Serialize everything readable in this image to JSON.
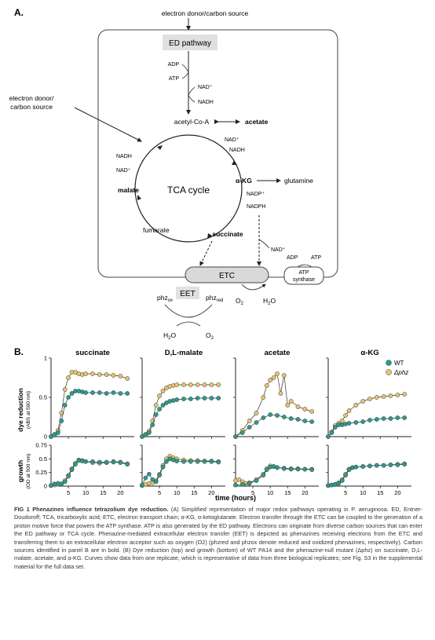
{
  "panel_a": {
    "label": "A.",
    "top_source": "electron donor/carbon source",
    "left_source_line1": "electron donor/",
    "left_source_line2": "carbon source",
    "ed_pathway": "ED pathway",
    "adp": "ADP",
    "atp": "ATP",
    "nad_plus": "NAD⁺",
    "nadh": "NADH",
    "acetyl_coa": "acetyl-Co-A",
    "acetate": "acetate",
    "nadh_left": "NADH",
    "nad_left": "NAD⁺",
    "malate": "malate",
    "tca_cycle": "TCA cycle",
    "akg": "α-KG",
    "glutamine": "glutamine",
    "nadp_plus": "NADP⁺",
    "nadph": "NADPH",
    "fumarate": "fumarate",
    "succinate": "succinate",
    "nad_plus_lower": "NAD⁺",
    "etc": "ETC",
    "atp_synthase_adp": "ADP",
    "atp_synthase_atp": "ATP",
    "atp_synthase_line1": "ATP",
    "atp_synthase_line2": "synthase",
    "eet": "EET",
    "phz": "phz",
    "ox": "ox",
    "red": "red",
    "o2": "O",
    "two": "2",
    "h2o": "H",
    "h2o_sub": "2",
    "h2o_o": "O"
  },
  "panel_b": {
    "label": "B.",
    "panels": [
      "succinate",
      "D,L-malate",
      "acetate",
      "α-KG"
    ],
    "legend": [
      {
        "label": "WT",
        "color": "#2a9d8f"
      },
      {
        "label": "Δphz",
        "color": "#e9c46a"
      }
    ],
    "dye_label": "dye reduction",
    "dye_unit": "(ABS at 590 nm)",
    "growth_label": "growth",
    "growth_unit": "(OD at 500 nm)",
    "x_label": "time (hours)",
    "x_ticks": [
      "5",
      "10",
      "15",
      "20"
    ],
    "dye_ticks": [
      "0",
      "0.5",
      "1"
    ],
    "growth_ticks": [
      "0",
      "0.25",
      "0.5",
      "0.75"
    ]
  },
  "chart_data": [
    {
      "type": "scatter",
      "title": "succinate",
      "ylabel": "dye reduction (ABS at 590 nm)",
      "xlim": [
        0,
        24
      ],
      "ylim": [
        0,
        1
      ],
      "series": [
        {
          "name": "WT",
          "x": [
            0,
            1,
            2,
            3,
            4,
            5,
            6,
            7,
            8,
            9,
            10,
            12,
            14,
            16,
            18,
            20,
            22
          ],
          "y": [
            0,
            0.02,
            0.05,
            0.2,
            0.4,
            0.5,
            0.55,
            0.58,
            0.58,
            0.57,
            0.56,
            0.56,
            0.56,
            0.55,
            0.56,
            0.55,
            0.55
          ]
        },
        {
          "name": "Δphz",
          "x": [
            0,
            1,
            2,
            3,
            4,
            5,
            6,
            7,
            8,
            9,
            10,
            12,
            14,
            16,
            18,
            20,
            22
          ],
          "y": [
            0,
            0.03,
            0.08,
            0.3,
            0.6,
            0.75,
            0.82,
            0.82,
            0.8,
            0.79,
            0.8,
            0.8,
            0.79,
            0.79,
            0.78,
            0.77,
            0.74
          ]
        }
      ]
    },
    {
      "type": "scatter",
      "title": "D,L-malate",
      "ylabel": "dye reduction (ABS at 590 nm)",
      "xlim": [
        0,
        24
      ],
      "ylim": [
        0,
        1
      ],
      "series": [
        {
          "name": "WT",
          "x": [
            0,
            1,
            2,
            3,
            4,
            5,
            6,
            7,
            8,
            9,
            10,
            12,
            14,
            16,
            18,
            20,
            22
          ],
          "y": [
            0,
            0.02,
            0.05,
            0.15,
            0.28,
            0.35,
            0.4,
            0.43,
            0.45,
            0.46,
            0.47,
            0.48,
            0.48,
            0.49,
            0.49,
            0.49,
            0.49
          ]
        },
        {
          "name": "Δphz",
          "x": [
            0,
            1,
            2,
            3,
            4,
            5,
            6,
            7,
            8,
            9,
            10,
            12,
            14,
            16,
            18,
            20,
            22
          ],
          "y": [
            0,
            0.03,
            0.07,
            0.2,
            0.4,
            0.52,
            0.58,
            0.62,
            0.64,
            0.65,
            0.66,
            0.66,
            0.66,
            0.66,
            0.66,
            0.66,
            0.66
          ]
        }
      ]
    },
    {
      "type": "scatter",
      "title": "acetate",
      "ylabel": "dye reduction (ABS at 590 nm)",
      "xlim": [
        0,
        24
      ],
      "ylim": [
        0,
        1
      ],
      "series": [
        {
          "name": "WT",
          "x": [
            0,
            2,
            4,
            6,
            8,
            10,
            12,
            14,
            16,
            18,
            20,
            22
          ],
          "y": [
            0,
            0.05,
            0.12,
            0.18,
            0.24,
            0.28,
            0.27,
            0.25,
            0.23,
            0.22,
            0.2,
            0.19
          ]
        },
        {
          "name": "Δphz",
          "x": [
            0,
            2,
            4,
            6,
            8,
            9,
            10,
            11,
            12,
            13,
            14,
            15,
            16,
            18,
            20,
            22
          ],
          "y": [
            0,
            0.08,
            0.2,
            0.3,
            0.5,
            0.65,
            0.72,
            0.75,
            0.8,
            0.55,
            0.78,
            0.4,
            0.45,
            0.38,
            0.35,
            0.32
          ]
        }
      ]
    },
    {
      "type": "scatter",
      "title": "α-KG",
      "ylabel": "dye reduction (ABS at 590 nm)",
      "xlim": [
        0,
        24
      ],
      "ylim": [
        0,
        1
      ],
      "series": [
        {
          "name": "WT",
          "x": [
            0,
            1,
            2,
            3,
            4,
            5,
            6,
            8,
            10,
            12,
            14,
            16,
            18,
            20,
            22
          ],
          "y": [
            0,
            0.05,
            0.12,
            0.15,
            0.15,
            0.16,
            0.17,
            0.18,
            0.19,
            0.21,
            0.22,
            0.23,
            0.23,
            0.24,
            0.24
          ]
        },
        {
          "name": "Δphz",
          "x": [
            0,
            1,
            2,
            3,
            4,
            5,
            6,
            8,
            10,
            12,
            14,
            16,
            18,
            20,
            22
          ],
          "y": [
            0,
            0.06,
            0.14,
            0.17,
            0.2,
            0.27,
            0.33,
            0.4,
            0.45,
            0.48,
            0.5,
            0.51,
            0.52,
            0.53,
            0.54
          ]
        }
      ]
    },
    {
      "type": "scatter",
      "title": "succinate",
      "ylabel": "growth (OD at 500 nm)",
      "xlim": [
        0,
        24
      ],
      "ylim": [
        0,
        0.75
      ],
      "series": [
        {
          "name": "WT",
          "x": [
            0,
            1,
            2,
            3,
            4,
            5,
            6,
            7,
            8,
            9,
            10,
            12,
            14,
            16,
            18,
            20,
            22
          ],
          "y": [
            0.01,
            0.04,
            0.05,
            0.04,
            0.08,
            0.18,
            0.3,
            0.4,
            0.47,
            0.46,
            0.45,
            0.45,
            0.44,
            0.44,
            0.44,
            0.43,
            0.4
          ]
        },
        {
          "name": "Δphz",
          "x": [
            0,
            1,
            2,
            3,
            4,
            5,
            6,
            7,
            8,
            9,
            10,
            12,
            14,
            16,
            18,
            20,
            22
          ],
          "y": [
            0.01,
            0.02,
            0.03,
            0.04,
            0.1,
            0.2,
            0.32,
            0.42,
            0.48,
            0.47,
            0.45,
            0.43,
            0.42,
            0.43,
            0.45,
            0.44,
            0.41
          ]
        }
      ]
    },
    {
      "type": "scatter",
      "title": "D,L-malate",
      "ylabel": "growth (OD at 500 nm)",
      "xlim": [
        0,
        24
      ],
      "ylim": [
        0,
        0.75
      ],
      "series": [
        {
          "name": "WT",
          "x": [
            0,
            1,
            2,
            3,
            4,
            5,
            6,
            7,
            8,
            9,
            10,
            12,
            14,
            16,
            18,
            20,
            22
          ],
          "y": [
            0.02,
            0.15,
            0.22,
            0.12,
            0.08,
            0.2,
            0.35,
            0.45,
            0.5,
            0.48,
            0.46,
            0.45,
            0.45,
            0.45,
            0.45,
            0.45,
            0.44
          ]
        },
        {
          "name": "Δphz",
          "x": [
            0,
            1,
            2,
            3,
            4,
            5,
            6,
            7,
            8,
            9,
            10,
            12,
            14,
            16,
            18,
            20,
            22
          ],
          "y": [
            0.01,
            0.03,
            0.05,
            0.06,
            0.1,
            0.22,
            0.38,
            0.5,
            0.55,
            0.52,
            0.5,
            0.48,
            0.47,
            0.47,
            0.46,
            0.46,
            0.45
          ]
        }
      ]
    },
    {
      "type": "scatter",
      "title": "acetate",
      "ylabel": "growth (OD at 500 nm)",
      "xlim": [
        0,
        24
      ],
      "ylim": [
        0,
        0.75
      ],
      "series": [
        {
          "name": "WT",
          "x": [
            0,
            2,
            4,
            6,
            8,
            9,
            10,
            11,
            12,
            14,
            16,
            18,
            20,
            22
          ],
          "y": [
            0.02,
            0.03,
            0.05,
            0.1,
            0.2,
            0.3,
            0.35,
            0.36,
            0.34,
            0.32,
            0.31,
            0.31,
            0.31,
            0.3
          ]
        },
        {
          "name": "Δphz",
          "x": [
            0,
            1,
            2,
            3,
            4,
            6,
            8,
            9,
            10,
            11,
            12,
            14,
            16,
            18,
            20,
            22
          ],
          "y": [
            0.1,
            0.12,
            0.08,
            0.05,
            0.06,
            0.12,
            0.22,
            0.32,
            0.37,
            0.36,
            0.34,
            0.33,
            0.32,
            0.32,
            0.31,
            0.31
          ]
        }
      ]
    },
    {
      "type": "scatter",
      "title": "α-KG",
      "ylabel": "growth (OD at 500 nm)",
      "xlim": [
        0,
        24
      ],
      "ylim": [
        0,
        0.75
      ],
      "series": [
        {
          "name": "WT",
          "x": [
            0,
            1,
            2,
            3,
            4,
            5,
            6,
            7,
            8,
            10,
            12,
            14,
            16,
            18,
            20,
            22
          ],
          "y": [
            0.01,
            0.02,
            0.03,
            0.05,
            0.1,
            0.2,
            0.3,
            0.34,
            0.35,
            0.36,
            0.37,
            0.38,
            0.38,
            0.39,
            0.39,
            0.4
          ]
        },
        {
          "name": "Δphz",
          "x": [
            0,
            1,
            2,
            3,
            4,
            5,
            6,
            7,
            8,
            10,
            12,
            14,
            16,
            18,
            20,
            22
          ],
          "y": [
            0.01,
            0.02,
            0.03,
            0.06,
            0.12,
            0.22,
            0.31,
            0.34,
            0.35,
            0.36,
            0.37,
            0.38,
            0.38,
            0.39,
            0.4,
            0.41
          ]
        }
      ]
    }
  ],
  "caption": {
    "fig": "FIG 1",
    "title": "Phenazines influence tetrazolium dye reduction.",
    "line1": "(A) Simplified representation of major redox pathways operating in P. aeruginosa. ED, Entner-Doudoroff; TCA, tricarboxylic acid; ETC, electron transport chain; α-KG, α-ketoglutarate. Electron transfer through the ETC can be coupled to the generation of a proton motive force that powers the ATP synthase. ATP is also generated by the ED pathway. Electrons can originate from diverse carbon sources that can enter the ED pathway or TCA cycle. Phenazine-mediated extracellular electron transfer (EET) is depicted as phenazines receiving electrons from the ETC and transferring them to an extracellular electron acceptor such as oxygen (O2) (phzred and phzox denote reduced and oxidized phenazines, respectively). Carbon sources identified in panel B are in bold. (B) Dye reduction (top) and growth (bottom) of WT PA14 and the phenazine-null mutant (Δphz) on succinate, D,L-malate, acetate, and α-KG. Curves show data from one replicate, which is representative of data from three biological replicates; see Fig. S3 in the supplemental material for the full data set."
  }
}
